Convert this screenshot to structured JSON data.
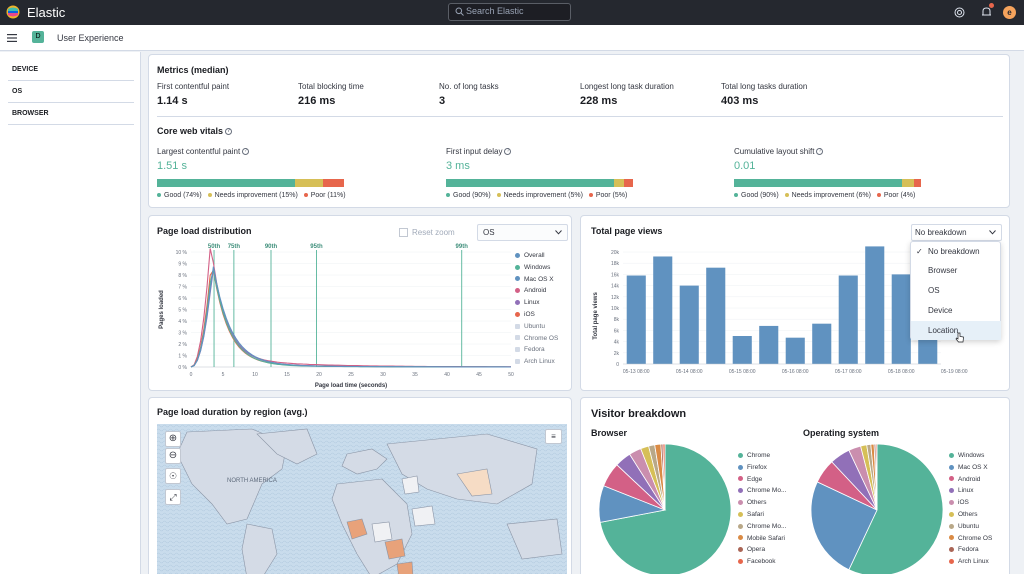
{
  "header": {
    "app": "Elastic",
    "search_placeholder": "Search Elastic",
    "avatar": "e"
  },
  "subheader": {
    "space": "D",
    "page": "User Experience"
  },
  "sidebar": {
    "items": [
      "DEVICE",
      "OS",
      "BROWSER"
    ]
  },
  "metrics": {
    "title": "Metrics (median)",
    "items": [
      {
        "label": "First contentful paint",
        "value": "1.14 s"
      },
      {
        "label": "Total blocking time",
        "value": "216 ms"
      },
      {
        "label": "No. of long tasks",
        "value": "3"
      },
      {
        "label": "Longest long task duration",
        "value": "228 ms"
      },
      {
        "label": "Total long tasks duration",
        "value": "403 ms"
      }
    ]
  },
  "vitals": {
    "title": "Core web vitals",
    "items": [
      {
        "label": "Largest contentful paint",
        "value": "1.51 s",
        "good": 74,
        "needs": 15,
        "poor": 11,
        "good_l": "Good (74%)",
        "needs_l": "Needs improvement (15%)",
        "poor_l": "Poor (11%)"
      },
      {
        "label": "First input delay",
        "value": "3 ms",
        "good": 90,
        "needs": 5,
        "poor": 5,
        "good_l": "Good (90%)",
        "needs_l": "Needs improvement (5%)",
        "poor_l": "Poor (5%)"
      },
      {
        "label": "Cumulative layout shift",
        "value": "0.01",
        "good": 90,
        "needs": 6,
        "poor": 4,
        "good_l": "Good (90%)",
        "needs_l": "Needs improvement (6%)",
        "poor_l": "Poor (4%)"
      }
    ]
  },
  "colors": {
    "good": "#54b399",
    "needs": "#d6bf57",
    "poor": "#e7664c"
  },
  "pld": {
    "title": "Page load distribution",
    "reset": "Reset zoom",
    "breakdown": "OS",
    "ylabel": "Pages loaded",
    "xlabel": "Page load time (seconds)",
    "percentiles": [
      {
        "label": "50th",
        "x": 3.6
      },
      {
        "label": "75th",
        "x": 6.7
      },
      {
        "label": "90th",
        "x": 12.5
      },
      {
        "label": "95th",
        "x": 19.6
      },
      {
        "label": "99th",
        "x": 42.3
      }
    ],
    "xticks": [
      "0",
      "5",
      "10",
      "15",
      "20",
      "25",
      "30",
      "35",
      "40",
      "45",
      "50"
    ],
    "yticks": [
      "0 %",
      "1 %",
      "2 %",
      "3 %",
      "4 %",
      "5 %",
      "6 %",
      "7 %",
      "8 %",
      "9 %",
      "10 %"
    ],
    "legend": [
      {
        "name": "Overall",
        "color": "#6092c0",
        "on": true
      },
      {
        "name": "Windows",
        "color": "#54b399",
        "on": true
      },
      {
        "name": "Mac OS X",
        "color": "#6092c0",
        "on": true
      },
      {
        "name": "Android",
        "color": "#d36086",
        "on": true
      },
      {
        "name": "Linux",
        "color": "#9170b8",
        "on": true
      },
      {
        "name": "iOS",
        "color": "#e7664c",
        "on": true
      },
      {
        "name": "Ubuntu",
        "color": "#d3dae6",
        "on": false
      },
      {
        "name": "Chrome OS",
        "color": "#d3dae6",
        "on": false
      },
      {
        "name": "Fedora",
        "color": "#d3dae6",
        "on": false
      },
      {
        "name": "Arch Linux",
        "color": "#d3dae6",
        "on": false
      }
    ]
  },
  "tpv": {
    "title": "Total page views",
    "ylabel": "Total page views",
    "select": "No breakdown",
    "yticks": [
      "0",
      "2k",
      "4k",
      "6k",
      "8k",
      "10k",
      "12k",
      "14k",
      "16k",
      "18k",
      "20k"
    ],
    "xticks": [
      "05-13 08:00",
      "05-14 08:00",
      "05-15 08:00",
      "05-16 08:00",
      "05-17 08:00",
      "05-18 08:00",
      "05-19 08:00"
    ],
    "bars": [
      15800,
      19200,
      14000,
      17200,
      5000,
      6800,
      4700,
      7200,
      15800,
      21000,
      16000,
      16000
    ],
    "dropdown": [
      "No breakdown",
      "Browser",
      "OS",
      "Device",
      "Location"
    ]
  },
  "map": {
    "title": "Page load duration by region (avg.)",
    "label": "NORTH AMERICA"
  },
  "visitor": {
    "title": "Visitor breakdown",
    "browser": {
      "title": "Browser",
      "legend": [
        "Chrome",
        "Firefox",
        "Edge",
        "Chrome Mo...",
        "Others",
        "Safari",
        "Chrome Mo...",
        "Mobile Safari",
        "Opera",
        "Facebook"
      ],
      "values": [
        72,
        9,
        6,
        4,
        3,
        2,
        1.5,
        1.5,
        0.5,
        0.5
      ]
    },
    "os": {
      "title": "Operating system",
      "legend": [
        "Windows",
        "Mac OS X",
        "Android",
        "Linux",
        "iOS",
        "Others",
        "Ubuntu",
        "Chrome OS",
        "Fedora",
        "Arch Linux"
      ],
      "values": [
        57,
        25,
        6,
        5,
        3,
        1.5,
        1,
        0.8,
        0.4,
        0.3
      ]
    },
    "colors": [
      "#54b399",
      "#6092c0",
      "#d36086",
      "#9170b8",
      "#ca8eae",
      "#d6bf57",
      "#b9a888",
      "#da8b45",
      "#aa6556",
      "#e7664c"
    ]
  }
}
